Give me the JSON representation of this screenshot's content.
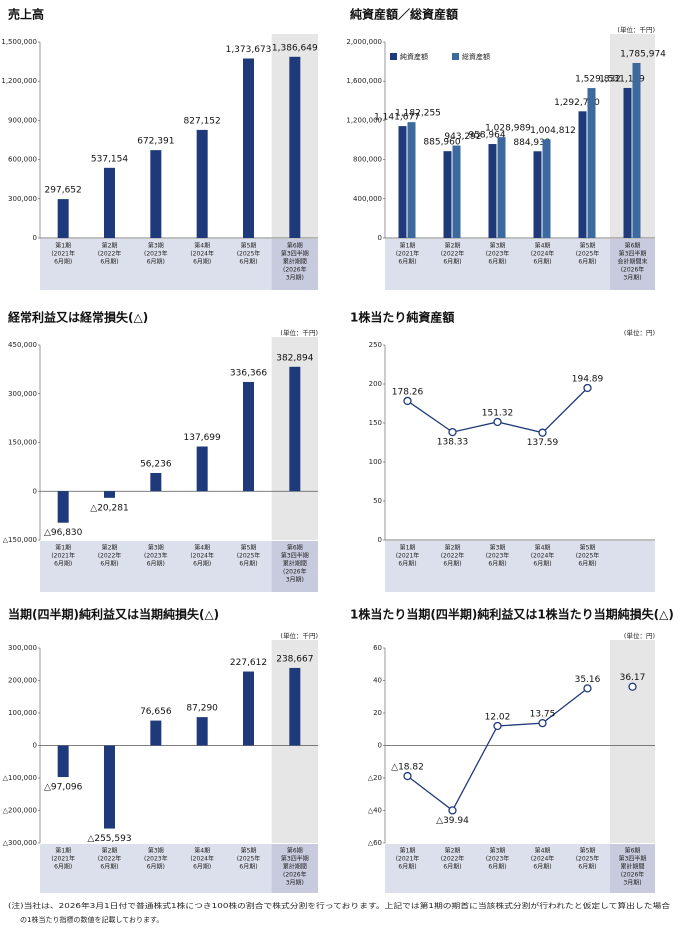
{
  "chart_data": [
    {
      "type": "bar",
      "title": "売上高",
      "color": "#1f3a7a",
      "categories": [
        [
          "第1期",
          "(2021年",
          "6月期)"
        ],
        [
          "第2期",
          "(2022年",
          "6月期)"
        ],
        [
          "第3期",
          "(2023年",
          "6月期)"
        ],
        [
          "第4期",
          "(2024年",
          "6月期)"
        ],
        [
          "第5期",
          "(2025年",
          "6月期)"
        ],
        [
          "第6期",
          "第3四半期",
          "累計期間",
          "(2026年",
          "3月期)"
        ]
      ],
      "values": [
        297652,
        537154,
        672391,
        827152,
        1373673,
        1386649
      ],
      "value_labels": [
        "297,652",
        "537,154",
        "672,391",
        "827,152",
        "1,373,673",
        "1,386,649"
      ],
      "ylim": [
        0,
        1500000
      ],
      "yticks": [
        0,
        {
          "value": 300000,
          "label": "300,000"
        },
        {
          "value": 600000,
          "label": "600,000"
        },
        {
          "value": 900000,
          "label": "900,000"
        },
        {
          "value": 1200000,
          "label": "1,200,000"
        },
        {
          "value": 1500000,
          "label": "1,500,000"
        }
      ]
    },
    {
      "type": "bar",
      "title": "純資産額／総資産額",
      "unit": "(単位：千円)",
      "legend": "top-left",
      "categories": [
        [
          "第1期",
          "(2021年",
          "6月期)"
        ],
        [
          "第2期",
          "(2022年",
          "6月期)"
        ],
        [
          "第3期",
          "(2023年",
          "6月期)"
        ],
        [
          "第4期",
          "(2024年",
          "6月期)"
        ],
        [
          "第5期",
          "(2025年",
          "6月期)"
        ],
        [
          "第6期",
          "第3四半期",
          "会計期間末",
          "(2026年",
          "3月期)"
        ]
      ],
      "series": [
        {
          "name": "純資産額",
          "color": "#1f3a7a",
          "values": [
            1141677,
            885960,
            958964,
            884932,
            1292760,
            1531169
          ],
          "value_labels": [
            "1,141,677",
            "885,960",
            "958,964",
            "884,932",
            "1,292,760",
            "1,531,169"
          ]
        },
        {
          "name": "総資産額",
          "color": "#3d6a9e",
          "values": [
            1182255,
            943292,
            1028989,
            1004812,
            1529832,
            1785974
          ],
          "value_labels": [
            "1,182,255",
            "943,292",
            "1,028,989",
            "1,004,812",
            "1,529,832",
            "1,785,974"
          ]
        }
      ],
      "ylim": [
        0,
        2000000
      ],
      "yticks": [
        0,
        {
          "value": 400000,
          "label": "400,000"
        },
        {
          "value": 800000,
          "label": "800,000"
        },
        {
          "value": 1200000,
          "label": "1,200,000"
        },
        {
          "value": 1600000,
          "label": "1,600,000"
        },
        {
          "value": 2000000,
          "label": "2,000,000"
        }
      ]
    },
    {
      "type": "bar",
      "title": "経常利益又は経常損失(△)",
      "unit": "(単位：千円)",
      "color": "#1f3a7a",
      "categories": [
        [
          "第1期",
          "(2021年",
          "6月期)"
        ],
        [
          "第2期",
          "(2022年",
          "6月期)"
        ],
        [
          "第3期",
          "(2023年",
          "6月期)"
        ],
        [
          "第4期",
          "(2024年",
          "6月期)"
        ],
        [
          "第5期",
          "(2025年",
          "6月期)"
        ],
        [
          "第6期",
          "第3四半期",
          "累計期間",
          "(2026年",
          "3月期)"
        ]
      ],
      "values": [
        -96830,
        -20281,
        56236,
        137699,
        336366,
        382894
      ],
      "value_labels": [
        "△96,830",
        "△20,281",
        "56,236",
        "137,699",
        "336,366",
        "382,894"
      ],
      "ylim": [
        -150000,
        450000
      ],
      "yticks": [
        {
          "value": -150000,
          "label": "△150,000"
        },
        0,
        {
          "value": 150000,
          "label": "150,000"
        },
        {
          "value": 300000,
          "label": "300,000"
        },
        {
          "value": 450000,
          "label": "450,000"
        }
      ]
    },
    {
      "type": "line",
      "title": "1株当たり純資産額",
      "unit": "(単位：円)",
      "color": "#1f3a7a",
      "categories": [
        [
          "第1期",
          "(2021年",
          "6月期)"
        ],
        [
          "第2期",
          "(2022年",
          "6月期)"
        ],
        [
          "第3期",
          "(2023年",
          "6月期)"
        ],
        [
          "第4期",
          "(2024年",
          "6月期)"
        ],
        [
          "第5期",
          "(2025年",
          "6月期)"
        ]
      ],
      "values": [
        178.26,
        138.33,
        151.32,
        137.59,
        194.89
      ],
      "ylim": [
        0,
        250
      ],
      "yticks": [
        0,
        50,
        100,
        150,
        200,
        250
      ]
    },
    {
      "type": "bar",
      "title": "当期(四半期)純利益又は当期純損失(△)",
      "unit": "(単位：千円)",
      "color": "#1f3a7a",
      "categories": [
        [
          "第1期",
          "(2021年",
          "6月期)"
        ],
        [
          "第2期",
          "(2022年",
          "6月期)"
        ],
        [
          "第3期",
          "(2023年",
          "6月期)"
        ],
        [
          "第4期",
          "(2024年",
          "6月期)"
        ],
        [
          "第5期",
          "(2025年",
          "6月期)"
        ],
        [
          "第6期",
          "第3四半期",
          "累計期間",
          "(2026年",
          "3月期)"
        ]
      ],
      "values": [
        -97096,
        -255593,
        76656,
        87290,
        227612,
        238667
      ],
      "value_labels": [
        "△97,096",
        "△255,593",
        "76,656",
        "87,290",
        "227,612",
        "238,667"
      ],
      "ylim": [
        -300000,
        300000
      ],
      "yticks": [
        {
          "value": -300000,
          "label": "△300,000"
        },
        {
          "value": -200000,
          "label": "△200,000"
        },
        {
          "value": -100000,
          "label": "△100,000"
        },
        0,
        {
          "value": 100000,
          "label": "100,000"
        },
        {
          "value": 200000,
          "label": "200,000"
        },
        {
          "value": 300000,
          "label": "300,000"
        }
      ]
    },
    {
      "type": "line",
      "title": "1株当たり当期(四半期)純利益又は1株当たり当期純損失(△)",
      "unit": "(単位：円)",
      "categories": [
        [
          "第1期",
          "(2021年",
          "6月期)"
        ],
        [
          "第2期",
          "(2022年",
          "6月期)"
        ],
        [
          "第3期",
          "(2023年",
          "6月期)"
        ],
        [
          "第4期",
          "(2024年",
          "6月期)"
        ],
        [
          "第5期",
          "(2025年",
          "6月期)"
        ],
        [
          "第6期",
          "第3四半期",
          "累計期間",
          "(2026年",
          "3月期)"
        ]
      ],
      "series": [
        {
          "color": "#1f3a7a",
          "values": [
            -18.82,
            -39.94,
            12.02,
            13.75,
            35.16,
            null
          ],
          "value_labels": [
            "△18.82",
            "△39.94",
            "12.02",
            "13.75",
            "35.16",
            null
          ]
        },
        {
          "color": "#1f3a7a",
          "values": [
            null,
            null,
            null,
            null,
            null,
            36.17
          ]
        }
      ],
      "ylim": [
        -60,
        60
      ],
      "yticks": [
        {
          "value": -60,
          "label": "△60"
        },
        {
          "value": -40,
          "label": "△40"
        },
        {
          "value": -20,
          "label": "△20"
        },
        0,
        20,
        40,
        60
      ]
    }
  ],
  "note": [
    "(注)当社は、2026年3月1日付で普通株式1株につき100株の割合で株式分割を行っております。上記では第1期の期首に当該株式分割が行われたと仮定して算出した場合",
    "の1株当たり指標の数値を記載しております。"
  ]
}
